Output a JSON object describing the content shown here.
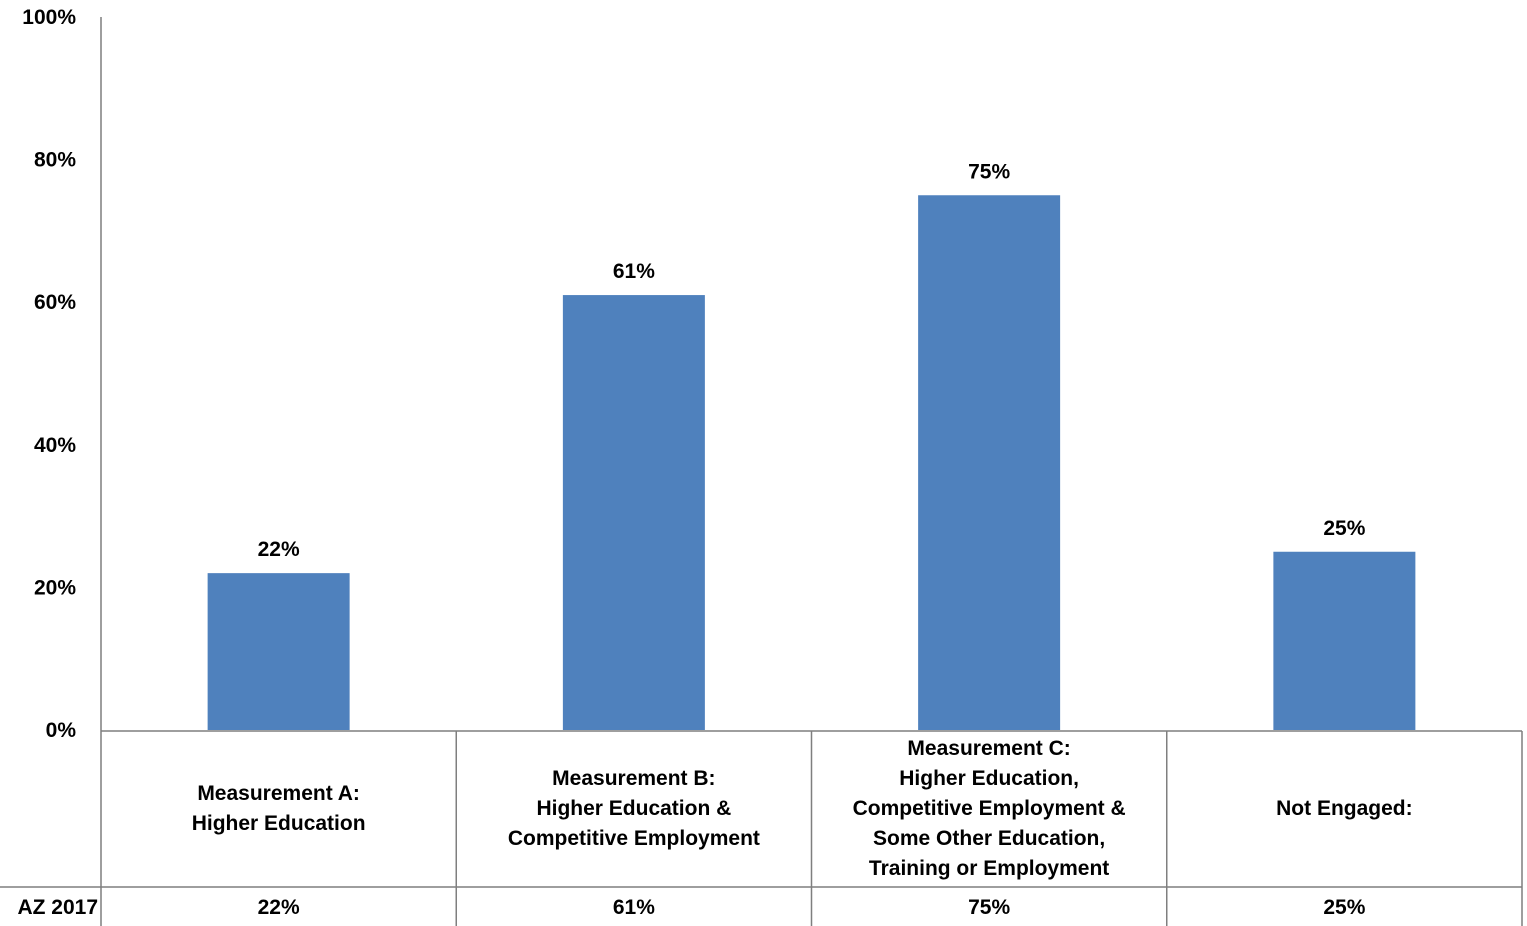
{
  "chart_data": {
    "type": "bar",
    "categories": [
      "Measurement A:\nHigher Education",
      "Measurement B:\nHigher Education &\nCompetitive Employment",
      "Measurement C:\nHigher Education,\nCompetitive Employment &\nSome Other Education,\nTraining or Employment",
      "Not Engaged:"
    ],
    "series": [
      {
        "name": "AZ 2017",
        "values": [
          22,
          61,
          75,
          25
        ],
        "labels": [
          "22%",
          "61%",
          "75%",
          "25%"
        ]
      }
    ],
    "ylim": [
      0,
      100
    ],
    "yticks": [
      "0%",
      "20%",
      "40%",
      "60%",
      "80%",
      "100%"
    ],
    "data_table": true,
    "legend": "none",
    "grid": false
  },
  "colors": {
    "bar": "#4f81bd",
    "axis": "#7f7f7f"
  }
}
